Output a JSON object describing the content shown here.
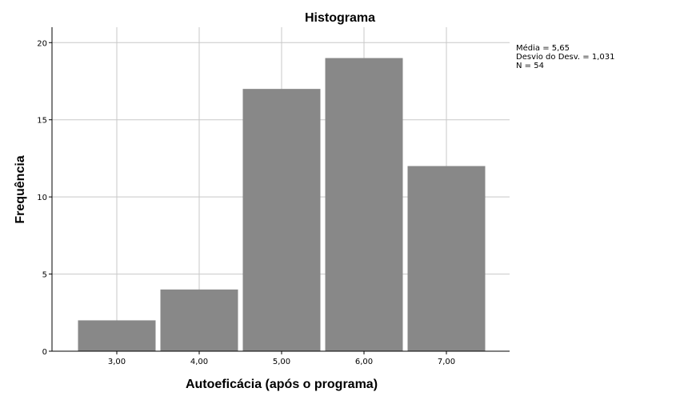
{
  "chart_data": {
    "type": "bar",
    "title": "Histograma",
    "xlabel": "Autoeficácia (após o programa)",
    "ylabel": "Frequência",
    "categories": [
      "3,00",
      "4,00",
      "5,00",
      "6,00",
      "7,00"
    ],
    "values": [
      2,
      4,
      17,
      19,
      12
    ],
    "ylim": [
      0,
      21
    ],
    "yticks": [
      0,
      5,
      10,
      15,
      20
    ],
    "grid": true,
    "bar_color": "#888888",
    "grid_color": "#c8c8c8",
    "stats": [
      "Média = 5,65",
      " Desvio do Desv. = 1,031",
      "N = 54"
    ],
    "stats_placement": "top-right"
  }
}
